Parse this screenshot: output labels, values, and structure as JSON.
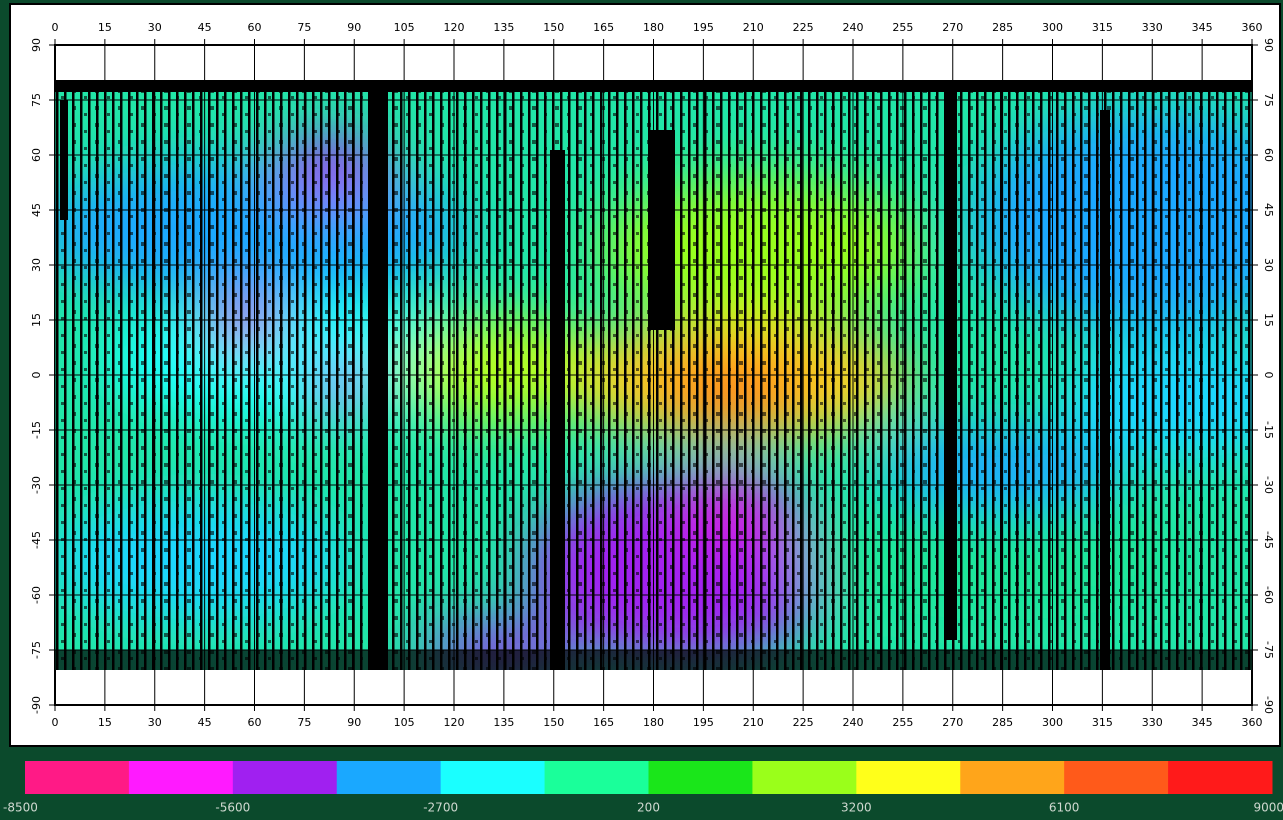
{
  "map": {
    "x_ticks": [
      0,
      15,
      30,
      45,
      60,
      75,
      90,
      105,
      120,
      135,
      150,
      165,
      180,
      195,
      210,
      225,
      240,
      255,
      270,
      285,
      300,
      315,
      330,
      345,
      360
    ],
    "y_ticks": [
      90,
      75,
      60,
      45,
      30,
      15,
      0,
      -15,
      -30,
      -45,
      -60,
      -75,
      -90
    ],
    "colorbar": {
      "colors": [
        "#ff1a86",
        "#ff1aff",
        "#a020f0",
        "#1aa8ff",
        "#1affff",
        "#1aff9a",
        "#1ae61a",
        "#9aff1a",
        "#ffff1a",
        "#ffa51a",
        "#ff5a1a",
        "#ff1a1a"
      ],
      "labels": [
        -8500,
        -5600,
        -2700,
        200,
        3200,
        6100,
        9000
      ]
    }
  }
}
